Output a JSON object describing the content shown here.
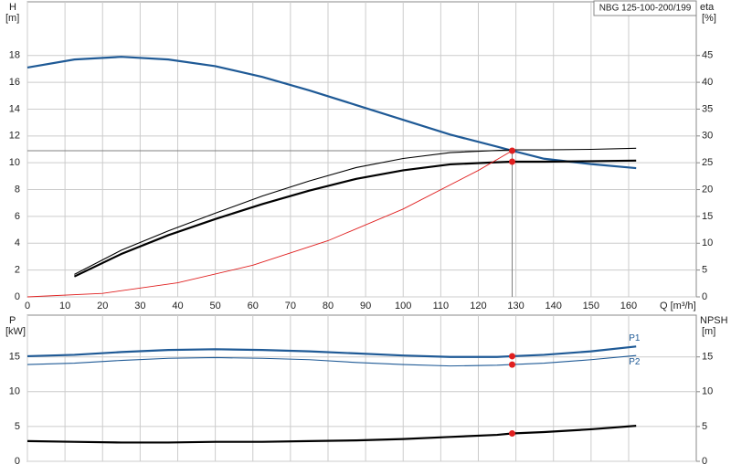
{
  "chart_data": [
    {
      "type": "line",
      "annotation": "NBG 125-100-200/199",
      "y_label": "H",
      "y_unit": "[m]",
      "y2_label": "eta",
      "y2_unit": "[%]",
      "x_label": "Q [m³/h]",
      "xlim": [
        0,
        178
      ],
      "xticks": [
        0,
        10,
        20,
        30,
        40,
        50,
        60,
        70,
        80,
        90,
        100,
        110,
        120,
        130,
        140,
        150,
        160
      ],
      "ylim": [
        0,
        22
      ],
      "yticks": [
        0,
        2,
        4,
        6,
        8,
        10,
        12,
        14,
        16,
        18
      ],
      "y2lim": [
        0,
        55
      ],
      "y2ticks": [
        0,
        5,
        10,
        15,
        20,
        25,
        30,
        35,
        40,
        45
      ],
      "grid": true,
      "show_xtick_labels": true,
      "reference_lines": {
        "x": 129,
        "y": 10.9,
        "color": "#808080"
      },
      "series": [
        {
          "style": "line",
          "color": "#1f5a96",
          "width": 2.2,
          "x": [
            0,
            12.5,
            25,
            37.5,
            50,
            62.5,
            75,
            87.5,
            100,
            112.5,
            125,
            129,
            137.5,
            150,
            162
          ],
          "values": [
            17.1,
            17.7,
            17.9,
            17.7,
            17.2,
            16.4,
            15.4,
            14.3,
            13.2,
            12.1,
            11.2,
            10.9,
            10.3,
            9.9,
            9.6
          ]
        },
        {
          "style": "line",
          "color": "#000000",
          "width": 2.2,
          "axis": "y2",
          "x": [
            12.5,
            25,
            37.5,
            50,
            62.5,
            75,
            87.5,
            100,
            112.5,
            125,
            129,
            137.5,
            150,
            162
          ],
          "values": [
            3.8,
            8,
            11.5,
            14.5,
            17.3,
            19.8,
            22,
            23.6,
            24.7,
            25.1,
            25.2,
            25.2,
            25.3,
            25.4
          ]
        },
        {
          "style": "line",
          "color": "#000000",
          "width": 1.1,
          "axis": "y2",
          "x": [
            12.5,
            25,
            37.5,
            50,
            62.5,
            75,
            87.5,
            100,
            112.5,
            125,
            129,
            137.5,
            150,
            162
          ],
          "values": [
            4.2,
            8.7,
            12.3,
            15.6,
            18.8,
            21.6,
            24.1,
            25.8,
            26.9,
            27.3,
            27.4,
            27.4,
            27.5,
            27.7
          ]
        },
        {
          "style": "line",
          "color": "#e02020",
          "width": 0.9,
          "x": [
            0,
            20,
            40,
            60,
            80,
            100,
            120,
            129
          ],
          "values": [
            0,
            0.26,
            1.05,
            2.36,
            4.19,
            6.55,
            9.43,
            10.9
          ]
        },
        {
          "style": "points",
          "color": "#e02020",
          "x": [
            129
          ],
          "values": [
            10.9
          ]
        },
        {
          "style": "points",
          "color": "#e02020",
          "axis": "y2",
          "x": [
            129
          ],
          "values": [
            25.2
          ]
        }
      ]
    },
    {
      "type": "line",
      "y_label": "P",
      "y_unit": "[kW]",
      "y2_label": "NPSH",
      "y2_unit": "[m]",
      "xlim": [
        0,
        178
      ],
      "xticks": [
        0,
        10,
        20,
        30,
        40,
        50,
        60,
        70,
        80,
        90,
        100,
        110,
        120,
        130,
        140,
        150,
        160
      ],
      "ylim": [
        0,
        21
      ],
      "yticks": [
        0,
        5,
        10,
        15
      ],
      "y2lim": [
        0,
        21
      ],
      "y2ticks": [
        0,
        5,
        10,
        15
      ],
      "grid": true,
      "show_xtick_labels": false,
      "series": [
        {
          "name": "P1",
          "style": "line",
          "color": "#1f5a96",
          "width": 2.2,
          "x": [
            0,
            12.5,
            25,
            37.5,
            50,
            62.5,
            75,
            87.5,
            100,
            112.5,
            125,
            129,
            137.5,
            150,
            162
          ],
          "values": [
            15.1,
            15.3,
            15.7,
            16,
            16.1,
            16,
            15.8,
            15.5,
            15.2,
            15,
            15,
            15.1,
            15.3,
            15.8,
            16.5
          ]
        },
        {
          "name": "P2",
          "style": "line",
          "color": "#1f5a96",
          "width": 1.1,
          "x": [
            0,
            12.5,
            25,
            37.5,
            50,
            62.5,
            75,
            87.5,
            100,
            112.5,
            125,
            129,
            137.5,
            150,
            162
          ],
          "values": [
            13.9,
            14.1,
            14.5,
            14.8,
            14.9,
            14.8,
            14.6,
            14.2,
            13.9,
            13.7,
            13.8,
            13.9,
            14.1,
            14.6,
            15.2
          ]
        },
        {
          "style": "line",
          "color": "#000000",
          "width": 2.2,
          "axis": "y2",
          "x": [
            0,
            12.5,
            25,
            37.5,
            50,
            62.5,
            75,
            87.5,
            100,
            112.5,
            125,
            129,
            137.5,
            150,
            162
          ],
          "values": [
            2.9,
            2.8,
            2.7,
            2.7,
            2.8,
            2.8,
            2.9,
            3.0,
            3.2,
            3.5,
            3.8,
            4.0,
            4.2,
            4.6,
            5.1
          ]
        },
        {
          "style": "points",
          "color": "#e02020",
          "x": [
            129
          ],
          "values": [
            15.1
          ]
        },
        {
          "style": "points",
          "color": "#e02020",
          "x": [
            129
          ],
          "values": [
            13.9
          ]
        },
        {
          "style": "points",
          "color": "#e02020",
          "axis": "y2",
          "x": [
            129
          ],
          "values": [
            4.0
          ]
        }
      ]
    }
  ]
}
